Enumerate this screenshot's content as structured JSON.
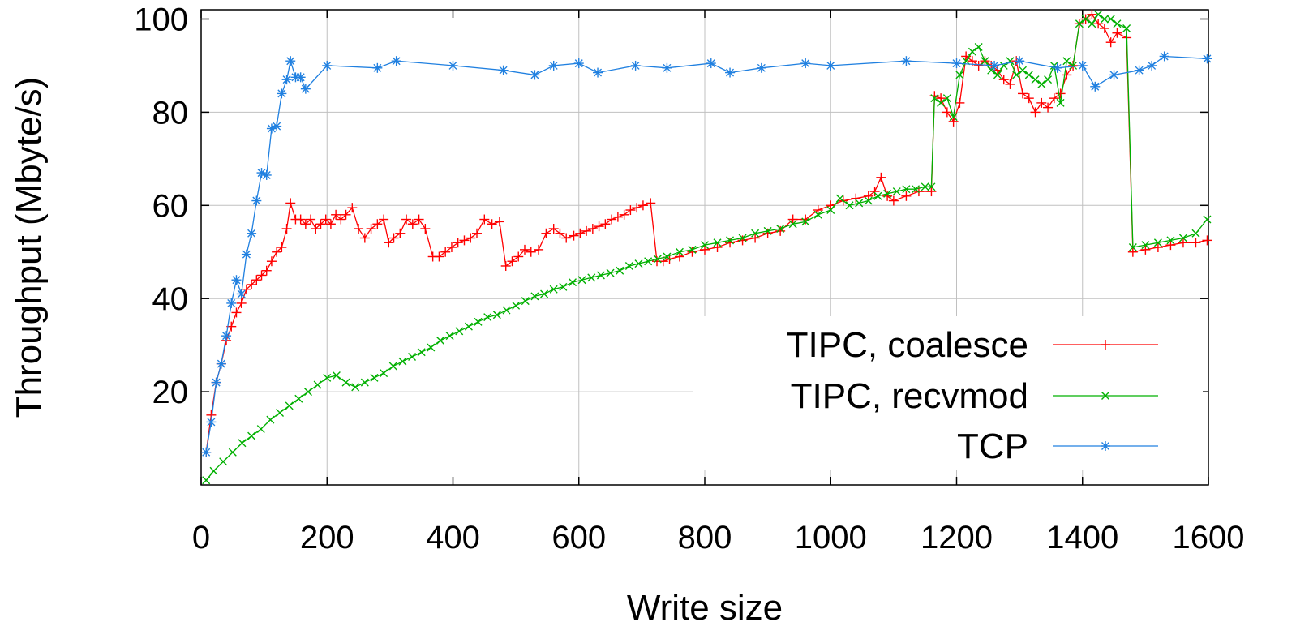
{
  "chart_data": {
    "type": "line",
    "title": "",
    "xlabel": "Write size",
    "ylabel": "Throughput (Mbyte/s)",
    "xlim": [
      0,
      1600
    ],
    "ylim": [
      0,
      102
    ],
    "x_ticks": [
      0,
      200,
      400,
      600,
      800,
      1000,
      1200,
      1400,
      1600
    ],
    "y_ticks": [
      20,
      40,
      60,
      80,
      100
    ],
    "grid": true,
    "legend_position": "bottom-right",
    "series": [
      {
        "name": "TIPC, coalesce",
        "color": "#ff0000",
        "marker": "plus",
        "points": [
          [
            8,
            7
          ],
          [
            16,
            15
          ],
          [
            24,
            22
          ],
          [
            32,
            26
          ],
          [
            40,
            31
          ],
          [
            48,
            34
          ],
          [
            56,
            37
          ],
          [
            64,
            39
          ],
          [
            72,
            42
          ],
          [
            80,
            43
          ],
          [
            88,
            44
          ],
          [
            96,
            45
          ],
          [
            104,
            46
          ],
          [
            112,
            48
          ],
          [
            120,
            50
          ],
          [
            128,
            51
          ],
          [
            136,
            55
          ],
          [
            142,
            60.5
          ],
          [
            150,
            57
          ],
          [
            158,
            57
          ],
          [
            166,
            56
          ],
          [
            174,
            57
          ],
          [
            182,
            55
          ],
          [
            190,
            56
          ],
          [
            198,
            57
          ],
          [
            206,
            56
          ],
          [
            214,
            58
          ],
          [
            222,
            57
          ],
          [
            230,
            58
          ],
          [
            240,
            59.5
          ],
          [
            250,
            55
          ],
          [
            260,
            53
          ],
          [
            270,
            55
          ],
          [
            280,
            56
          ],
          [
            290,
            57
          ],
          [
            298,
            52
          ],
          [
            306,
            53
          ],
          [
            316,
            54
          ],
          [
            326,
            57
          ],
          [
            336,
            56
          ],
          [
            346,
            57
          ],
          [
            356,
            55
          ],
          [
            368,
            49
          ],
          [
            378,
            49
          ],
          [
            388,
            50
          ],
          [
            398,
            51
          ],
          [
            408,
            52
          ],
          [
            418,
            52.5
          ],
          [
            428,
            53
          ],
          [
            438,
            54
          ],
          [
            450,
            57
          ],
          [
            462,
            56
          ],
          [
            474,
            56.5
          ],
          [
            484,
            47
          ],
          [
            494,
            48
          ],
          [
            504,
            49
          ],
          [
            514,
            50.5
          ],
          [
            524,
            50
          ],
          [
            536,
            50.5
          ],
          [
            548,
            54
          ],
          [
            560,
            55
          ],
          [
            570,
            54
          ],
          [
            580,
            53
          ],
          [
            592,
            53.5
          ],
          [
            602,
            54
          ],
          [
            612,
            54.5
          ],
          [
            622,
            55
          ],
          [
            632,
            55.5
          ],
          [
            642,
            56
          ],
          [
            652,
            57
          ],
          [
            662,
            57.5
          ],
          [
            672,
            58
          ],
          [
            682,
            59
          ],
          [
            692,
            59.5
          ],
          [
            702,
            60
          ],
          [
            714,
            60.5
          ],
          [
            724,
            48
          ],
          [
            734,
            48
          ],
          [
            744,
            48.5
          ],
          [
            760,
            49
          ],
          [
            780,
            50
          ],
          [
            800,
            50.5
          ],
          [
            820,
            51
          ],
          [
            840,
            52
          ],
          [
            860,
            52.5
          ],
          [
            880,
            53
          ],
          [
            900,
            54
          ],
          [
            920,
            54.5
          ],
          [
            940,
            57
          ],
          [
            960,
            57
          ],
          [
            980,
            59
          ],
          [
            1000,
            60
          ],
          [
            1020,
            61
          ],
          [
            1040,
            61.5
          ],
          [
            1060,
            62
          ],
          [
            1070,
            63
          ],
          [
            1080,
            66
          ],
          [
            1090,
            62
          ],
          [
            1100,
            61
          ],
          [
            1120,
            62
          ],
          [
            1140,
            63
          ],
          [
            1160,
            63
          ],
          [
            1165,
            83.5
          ],
          [
            1175,
            83
          ],
          [
            1185,
            80
          ],
          [
            1195,
            78
          ],
          [
            1205,
            82
          ],
          [
            1215,
            92
          ],
          [
            1225,
            91
          ],
          [
            1235,
            90
          ],
          [
            1245,
            91
          ],
          [
            1255,
            90
          ],
          [
            1265,
            89
          ],
          [
            1275,
            87
          ],
          [
            1285,
            86
          ],
          [
            1295,
            91
          ],
          [
            1305,
            84
          ],
          [
            1315,
            83
          ],
          [
            1325,
            80
          ],
          [
            1335,
            82
          ],
          [
            1345,
            81
          ],
          [
            1355,
            83
          ],
          [
            1365,
            84
          ],
          [
            1375,
            88
          ],
          [
            1385,
            90
          ],
          [
            1395,
            99
          ],
          [
            1405,
            100
          ],
          [
            1415,
            101
          ],
          [
            1425,
            99
          ],
          [
            1435,
            98
          ],
          [
            1445,
            95
          ],
          [
            1455,
            97
          ],
          [
            1470,
            96
          ],
          [
            1480,
            50
          ],
          [
            1500,
            50.5
          ],
          [
            1520,
            51
          ],
          [
            1540,
            51.5
          ],
          [
            1560,
            52
          ],
          [
            1580,
            52
          ],
          [
            1598,
            52.5
          ]
        ]
      },
      {
        "name": "TIPC, recvmod",
        "color": "#00b000",
        "marker": "cross",
        "points": [
          [
            8,
            1
          ],
          [
            20,
            3
          ],
          [
            35,
            5
          ],
          [
            50,
            7
          ],
          [
            65,
            9
          ],
          [
            80,
            10.5
          ],
          [
            95,
            12
          ],
          [
            110,
            14
          ],
          [
            125,
            15.5
          ],
          [
            140,
            17
          ],
          [
            155,
            18.5
          ],
          [
            170,
            20
          ],
          [
            185,
            21.5
          ],
          [
            200,
            23
          ],
          [
            215,
            23.5
          ],
          [
            230,
            22
          ],
          [
            245,
            21
          ],
          [
            260,
            22
          ],
          [
            275,
            23
          ],
          [
            290,
            24
          ],
          [
            305,
            25.5
          ],
          [
            320,
            26.5
          ],
          [
            335,
            27.5
          ],
          [
            350,
            28.5
          ],
          [
            365,
            29.5
          ],
          [
            380,
            31
          ],
          [
            395,
            32
          ],
          [
            410,
            33
          ],
          [
            425,
            34
          ],
          [
            440,
            35
          ],
          [
            455,
            36
          ],
          [
            470,
            36.5
          ],
          [
            485,
            37.5
          ],
          [
            500,
            38.5
          ],
          [
            515,
            39.5
          ],
          [
            530,
            40.5
          ],
          [
            545,
            41
          ],
          [
            560,
            42
          ],
          [
            575,
            42.5
          ],
          [
            590,
            43.5
          ],
          [
            605,
            44
          ],
          [
            620,
            44.5
          ],
          [
            635,
            45
          ],
          [
            650,
            45.5
          ],
          [
            665,
            46
          ],
          [
            680,
            47
          ],
          [
            695,
            47.5
          ],
          [
            710,
            48
          ],
          [
            725,
            48.5
          ],
          [
            740,
            49
          ],
          [
            760,
            50
          ],
          [
            780,
            50.5
          ],
          [
            800,
            51.5
          ],
          [
            820,
            52
          ],
          [
            840,
            52.5
          ],
          [
            860,
            53
          ],
          [
            880,
            54
          ],
          [
            900,
            54.5
          ],
          [
            920,
            55
          ],
          [
            940,
            56
          ],
          [
            960,
            56.5
          ],
          [
            980,
            58
          ],
          [
            1000,
            59
          ],
          [
            1015,
            61.5
          ],
          [
            1030,
            60
          ],
          [
            1045,
            60.5
          ],
          [
            1060,
            61
          ],
          [
            1075,
            62
          ],
          [
            1090,
            62.5
          ],
          [
            1105,
            63
          ],
          [
            1120,
            63.5
          ],
          [
            1135,
            63.5
          ],
          [
            1150,
            64
          ],
          [
            1160,
            64
          ],
          [
            1165,
            83
          ],
          [
            1175,
            82
          ],
          [
            1185,
            83
          ],
          [
            1195,
            79
          ],
          [
            1205,
            88
          ],
          [
            1215,
            91
          ],
          [
            1225,
            93
          ],
          [
            1235,
            94
          ],
          [
            1245,
            91
          ],
          [
            1255,
            89
          ],
          [
            1265,
            88
          ],
          [
            1275,
            90
          ],
          [
            1285,
            91
          ],
          [
            1295,
            88
          ],
          [
            1305,
            89
          ],
          [
            1315,
            88
          ],
          [
            1325,
            87
          ],
          [
            1335,
            86
          ],
          [
            1345,
            87
          ],
          [
            1355,
            90
          ],
          [
            1365,
            82
          ],
          [
            1375,
            91
          ],
          [
            1385,
            90
          ],
          [
            1395,
            99
          ],
          [
            1405,
            100
          ],
          [
            1415,
            99
          ],
          [
            1425,
            101
          ],
          [
            1435,
            100
          ],
          [
            1445,
            100
          ],
          [
            1455,
            99
          ],
          [
            1470,
            98
          ],
          [
            1480,
            51
          ],
          [
            1500,
            51.5
          ],
          [
            1520,
            52
          ],
          [
            1540,
            52.5
          ],
          [
            1560,
            53
          ],
          [
            1580,
            54
          ],
          [
            1598,
            57
          ]
        ]
      },
      {
        "name": "TCP",
        "color": "#2080e0",
        "marker": "star",
        "points": [
          [
            8,
            7
          ],
          [
            16,
            13.5
          ],
          [
            24,
            22
          ],
          [
            32,
            26
          ],
          [
            40,
            32
          ],
          [
            48,
            39
          ],
          [
            56,
            44
          ],
          [
            64,
            41
          ],
          [
            72,
            49.5
          ],
          [
            80,
            54
          ],
          [
            88,
            61
          ],
          [
            96,
            67
          ],
          [
            104,
            66.5
          ],
          [
            112,
            76.5
          ],
          [
            120,
            77
          ],
          [
            128,
            84
          ],
          [
            136,
            87
          ],
          [
            142,
            91
          ],
          [
            150,
            87.5
          ],
          [
            158,
            87.5
          ],
          [
            166,
            85
          ],
          [
            200,
            90
          ],
          [
            280,
            89.5
          ],
          [
            310,
            91
          ],
          [
            400,
            90
          ],
          [
            480,
            89
          ],
          [
            530,
            88
          ],
          [
            560,
            90
          ],
          [
            600,
            90.5
          ],
          [
            630,
            88.5
          ],
          [
            690,
            90
          ],
          [
            740,
            89.5
          ],
          [
            810,
            90.5
          ],
          [
            840,
            88.5
          ],
          [
            890,
            89.5
          ],
          [
            960,
            90.5
          ],
          [
            1000,
            90
          ],
          [
            1120,
            91
          ],
          [
            1200,
            90.5
          ],
          [
            1260,
            90
          ],
          [
            1300,
            91
          ],
          [
            1360,
            89.5
          ],
          [
            1400,
            90
          ],
          [
            1420,
            85.5
          ],
          [
            1450,
            88
          ],
          [
            1490,
            89
          ],
          [
            1510,
            90
          ],
          [
            1530,
            92
          ],
          [
            1598,
            91.5
          ]
        ]
      }
    ]
  }
}
